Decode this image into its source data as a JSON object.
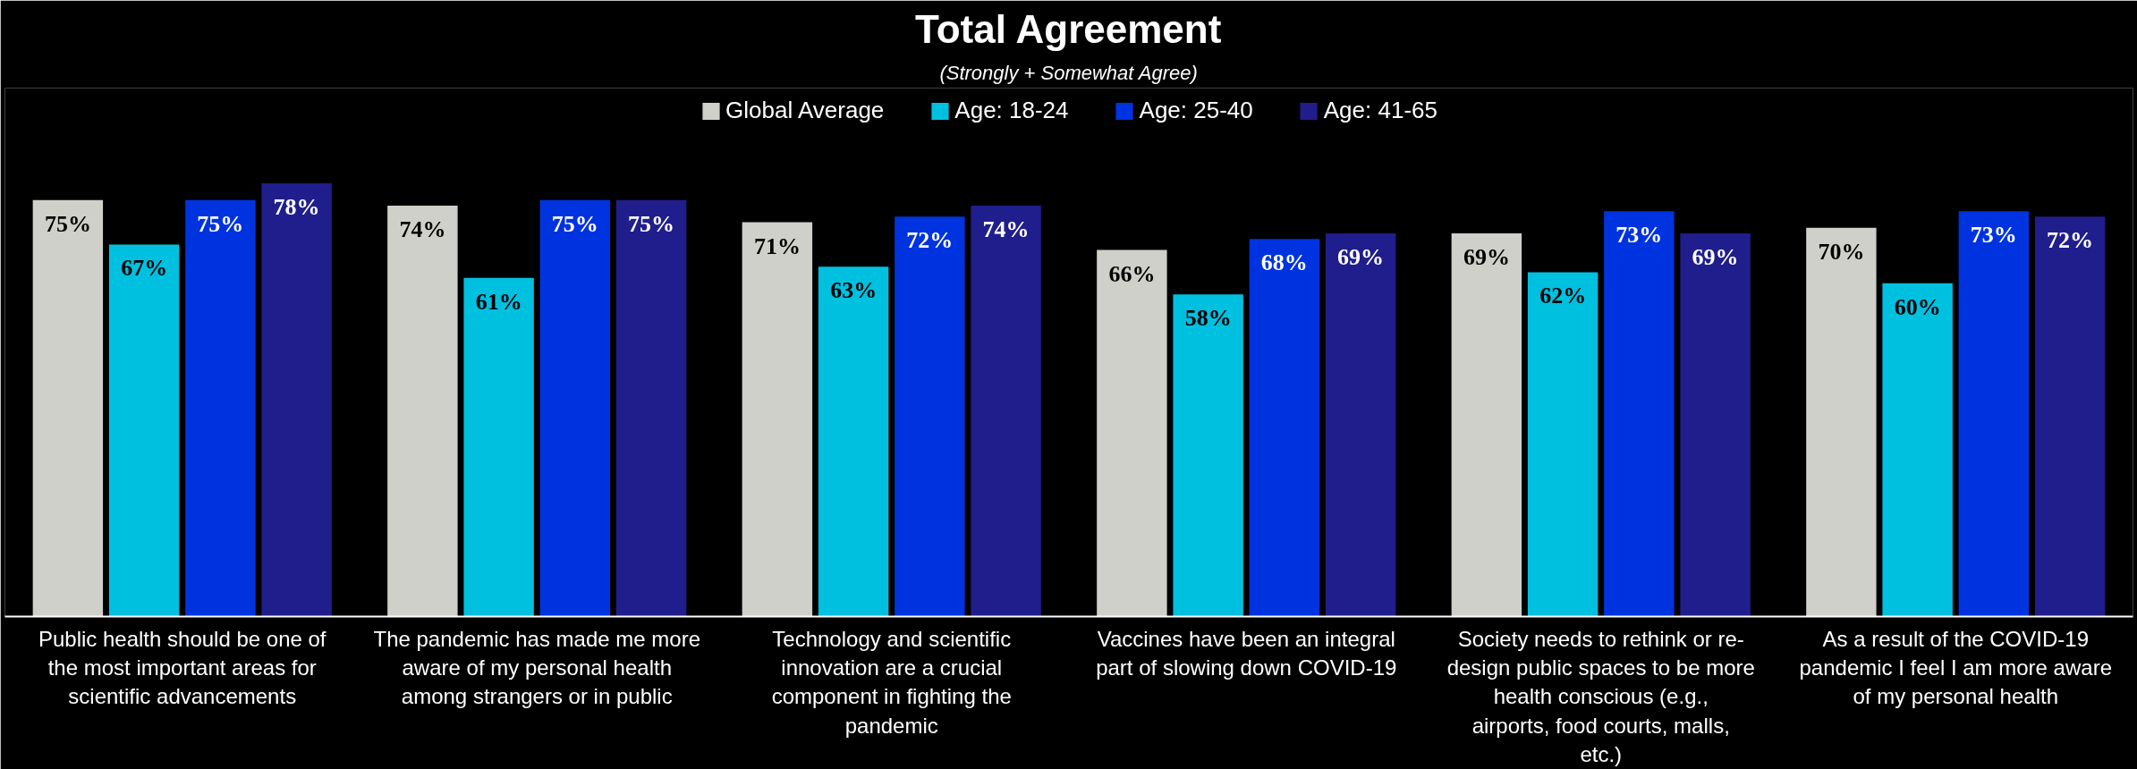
{
  "chart_data": {
    "type": "bar",
    "title": "Total Agreement",
    "subtitle": "(Strongly + Somewhat Agree)",
    "categories": [
      "Public health should be one of the most important areas for scientific advancements",
      "The pandemic has made me more aware of my personal health among strangers or in public",
      "Technology and scientific innovation are a crucial component in fighting the pandemic",
      "Vaccines have been an integral part of slowing down COVID-19",
      "Society needs to rethink or re-design public spaces to be more health conscious (e.g., airports, food courts, malls, etc.)",
      "As a result of the COVID-19 pandemic I feel I am more aware of my personal health"
    ],
    "series": [
      {
        "name": "Global Average",
        "color": "#d0d0ca",
        "values": [
          75,
          74,
          71,
          66,
          69,
          70
        ],
        "value_labels": [
          "75%",
          "74%",
          "71%",
          "66%",
          "69%",
          "70%"
        ]
      },
      {
        "name": "Age: 18-24",
        "color": "#00c0e0",
        "values": [
          67,
          61,
          63,
          58,
          62,
          60
        ],
        "value_labels": [
          "67%",
          "61%",
          "63%",
          "58%",
          "62%",
          "60%"
        ]
      },
      {
        "name": "Age: 25-40",
        "color": "#0033e0",
        "values": [
          75,
          75,
          72,
          68,
          73,
          73
        ],
        "value_labels": [
          "75%",
          "75%",
          "72%",
          "68%",
          "73%",
          "73%"
        ]
      },
      {
        "name": "Age: 41-65",
        "color": "#201e8c",
        "values": [
          78,
          75,
          74,
          69,
          69,
          72
        ],
        "value_labels": [
          "78%",
          "75%",
          "74%",
          "69%",
          "69%",
          "72%"
        ]
      }
    ],
    "legend": "top",
    "grid": false
  }
}
